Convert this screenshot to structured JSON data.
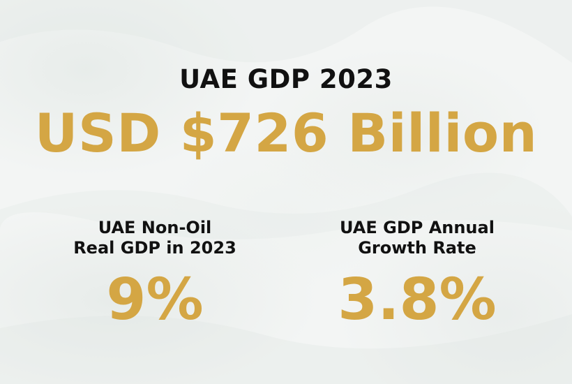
{
  "header": {
    "title": "UAE GDP 2023",
    "headline_value": "USD $726 Billion"
  },
  "stats": [
    {
      "label_line1": "UAE Non-Oil",
      "label_line2": "Real GDP in 2023",
      "value": "9%"
    },
    {
      "label_line1": "UAE GDP Annual",
      "label_line2": "Growth Rate",
      "value": "3.8%"
    }
  ],
  "colors": {
    "accent_gold": "#d4a644",
    "text_dark": "#111111",
    "background": "#f3f5f4"
  }
}
